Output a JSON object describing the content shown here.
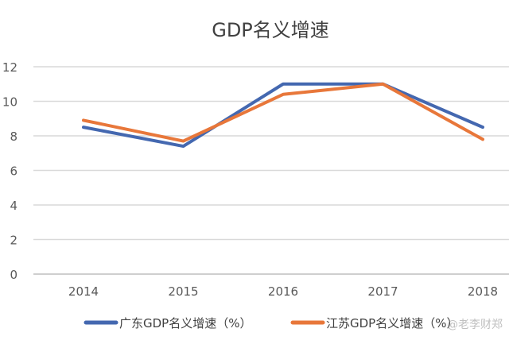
{
  "chart_data": {
    "type": "line",
    "title": "GDP名义增速",
    "categories": [
      "2014",
      "2015",
      "2016",
      "2017",
      "2018"
    ],
    "ylim": [
      0,
      12
    ],
    "yticks": [
      0,
      2,
      4,
      6,
      8,
      10,
      12
    ],
    "grid": true,
    "legend_position": "bottom",
    "series": [
      {
        "name": "广东GDP名义增速（%）",
        "color": "#4468b0",
        "values": [
          8.5,
          7.4,
          11.0,
          11.0,
          8.5
        ]
      },
      {
        "name": "江苏GDP名义增速（%）",
        "color": "#e8773a",
        "values": [
          8.9,
          7.7,
          10.4,
          11.0,
          7.8
        ]
      }
    ]
  },
  "watermark": "@老李财郑"
}
